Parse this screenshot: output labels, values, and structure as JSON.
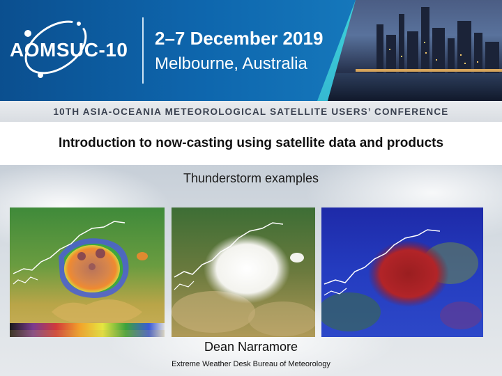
{
  "banner": {
    "logo_text": "AOMSUC-10",
    "event_dates": "2–7 December 2019",
    "event_location": "Melbourne, Australia",
    "conference_name": "10TH ASIA-OCEANIA METEOROLOGICAL SATELLITE USERS’ CONFERENCE"
  },
  "slide": {
    "title": "Introduction to now-casting using satellite data and products",
    "subtitle": "Thunderstorm examples",
    "presenter": "Dean Narramore",
    "affiliation": "Extreme Weather Desk Bureau of Meteorology"
  },
  "images": [
    {
      "name": "infrared-enhanced-image",
      "colorbar": true
    },
    {
      "name": "visible-image",
      "colorbar": false
    },
    {
      "name": "rgb-composite-image",
      "colorbar": false
    }
  ],
  "colors": {
    "banner_blue": "#0e66ad",
    "accent_cyan": "#3fd3d9"
  }
}
